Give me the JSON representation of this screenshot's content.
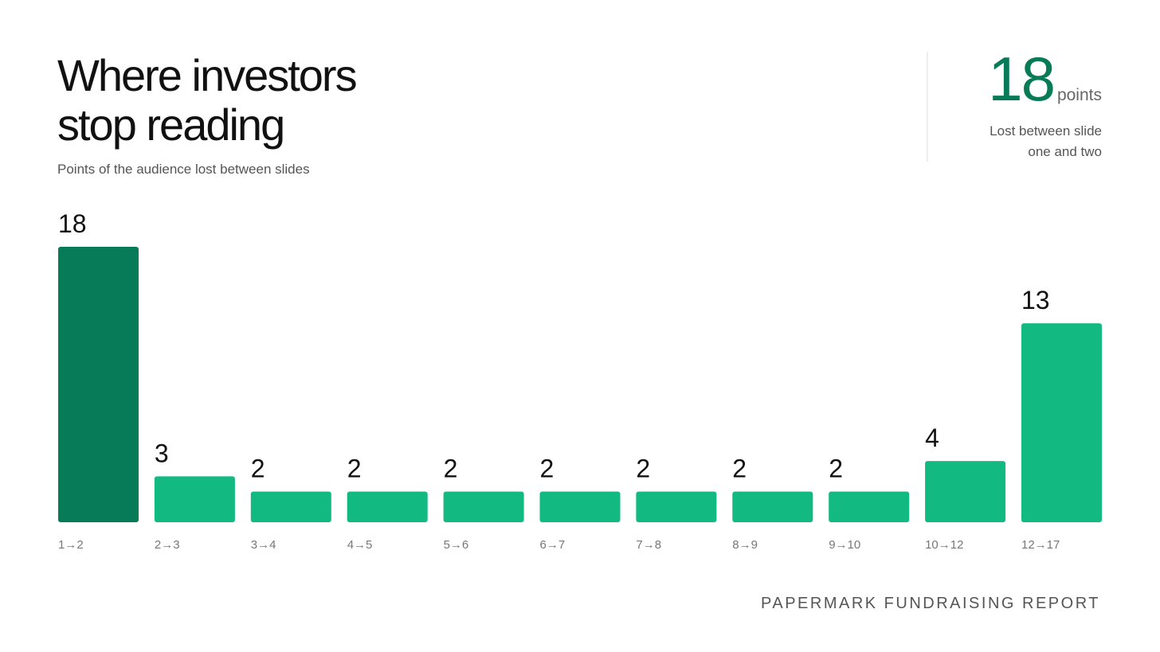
{
  "chart_data": {
    "type": "bar",
    "title": "Where investors stop reading",
    "subtitle": "Points of the audience lost between slides",
    "categories": [
      "1→2",
      "2→3",
      "3→4",
      "4→5",
      "5→6",
      "6→7",
      "7→8",
      "8→9",
      "9→10",
      "10→12",
      "12→17"
    ],
    "values": [
      18,
      3,
      2,
      2,
      2,
      2,
      2,
      2,
      2,
      4,
      13
    ],
    "colors": [
      "#077a57",
      "#12b981",
      "#12b981",
      "#12b981",
      "#12b981",
      "#12b981",
      "#12b981",
      "#12b981",
      "#12b981",
      "#12b981",
      "#12b981"
    ]
  },
  "highlight": {
    "value": 18,
    "unit": "points",
    "caption": "Lost between slide one and two"
  },
  "footer": "PAPERMARK FUNDRAISING REPORT"
}
